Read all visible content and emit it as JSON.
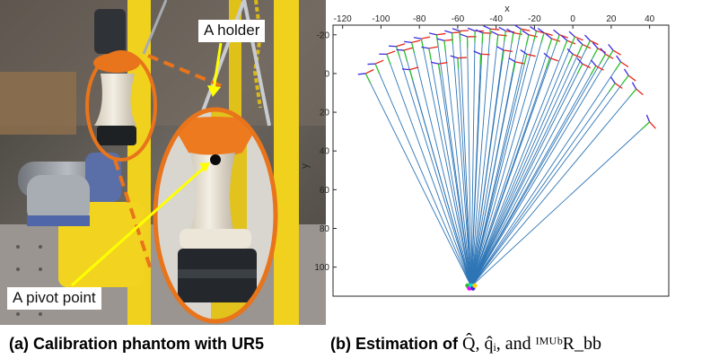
{
  "panel_a": {
    "callouts": {
      "holder": "A holder",
      "pivot": "A pivot point"
    },
    "caption": "(a) Calibration phantom with UR5"
  },
  "panel_b": {
    "caption_prefix": "(b) Estimation of",
    "caption_math": "Q̂, q̂ᵢ, and ᴵᴹᵁᵇR_bb"
  },
  "chart_data": {
    "type": "line",
    "xlabel": "x",
    "ylabel": "y",
    "xlim": [
      -125,
      50
    ],
    "ylim": [
      -25,
      115
    ],
    "y_reversed": true,
    "x_axis_position": "top",
    "grid": false,
    "x_ticks": [
      -120,
      -100,
      -80,
      -60,
      -40,
      -20,
      0,
      20,
      40
    ],
    "y_ticks": [
      -20,
      0,
      20,
      40,
      60,
      80,
      100
    ],
    "pivot": [
      -53,
      110
    ],
    "colors": {
      "lines": "#2E75B6",
      "x_axis": "#E8271B",
      "y_axis": "#2EC12E",
      "z_axis": "#3A2BE0"
    },
    "endpoints": [
      [
        -108,
        0
      ],
      [
        -103,
        -5
      ],
      [
        -97,
        -10
      ],
      [
        -92,
        -14
      ],
      [
        -88,
        -12
      ],
      [
        -84,
        -16
      ],
      [
        -79,
        -18
      ],
      [
        -75,
        -13
      ],
      [
        -71,
        -20
      ],
      [
        -67,
        -17
      ],
      [
        -63,
        -21
      ],
      [
        -59,
        -22
      ],
      [
        -55,
        -19
      ],
      [
        -51,
        -22
      ],
      [
        -47,
        -21
      ],
      [
        -43,
        -23
      ],
      [
        -39,
        -20
      ],
      [
        -35,
        -22
      ],
      [
        -31,
        -21
      ],
      [
        -27,
        -23
      ],
      [
        -23,
        -20
      ],
      [
        -19,
        -22
      ],
      [
        -15,
        -21
      ],
      [
        -11,
        -18
      ],
      [
        -7,
        -20
      ],
      [
        -3,
        -17
      ],
      [
        1,
        -19
      ],
      [
        5,
        -15
      ],
      [
        9,
        -17
      ],
      [
        13,
        -13
      ],
      [
        17,
        -10
      ],
      [
        21,
        -12
      ],
      [
        25,
        -6
      ],
      [
        29,
        1
      ],
      [
        33,
        8
      ],
      [
        -60,
        -8
      ],
      [
        -48,
        -10
      ],
      [
        -36,
        -12
      ],
      [
        -24,
        -10
      ],
      [
        -12,
        -8
      ],
      [
        0,
        -10
      ],
      [
        12,
        -4
      ],
      [
        22,
        5
      ],
      [
        40,
        25
      ],
      [
        -85,
        -2
      ],
      [
        -70,
        -5
      ],
      [
        -30,
        -6
      ],
      [
        5,
        -5
      ]
    ]
  }
}
